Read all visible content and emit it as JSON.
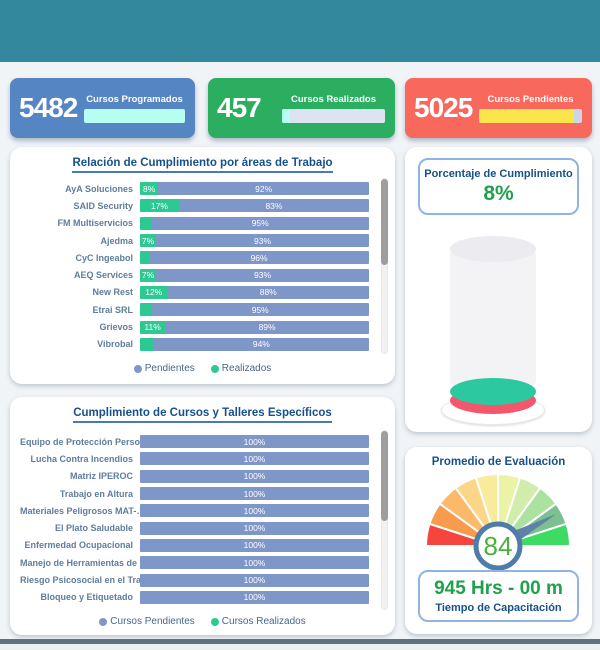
{
  "theme": {
    "header_teal": "#33889E",
    "bar_blue": "#7E96C8",
    "bar_green": "#2DC993",
    "title_blue": "#17508A",
    "value_green": "#1FA24C"
  },
  "kpis": [
    {
      "value": "5482",
      "label": "Cursos Programados",
      "fill_pct": 100,
      "bar_fill": "#B7FEF2",
      "bar_rest": "#B7FEF2"
    },
    {
      "value": "457",
      "label": "Cursos Realizados",
      "fill_pct": 8,
      "bar_fill": "#B7FEF2",
      "bar_rest": "#DCE4F2"
    },
    {
      "value": "5025",
      "label": "Cursos Pendientes",
      "fill_pct": 92,
      "bar_fill": "#FBE44C",
      "bar_rest": "#CBD5E3"
    }
  ],
  "chart_data": [
    {
      "type": "bar",
      "orientation": "horizontal",
      "stacked": true,
      "title": "Relación de Cumplimiento por áreas de Trabajo",
      "categories": [
        "AyA Soluciones",
        "SAID Security",
        "FM Multiservicios",
        "Ajedma",
        "CyC Ingeabol",
        "AEQ Services",
        "New Rest",
        "Etrai SRL",
        "Grievos",
        "Vibrobal"
      ],
      "series": [
        {
          "name": "Realizados",
          "color": "#2DC993",
          "values": [
            8,
            17,
            5,
            7,
            4,
            7,
            12,
            5,
            11,
            6
          ],
          "labels": [
            "8%",
            "17%",
            "",
            "7%",
            "",
            "7%",
            "12%",
            "",
            "11%",
            ""
          ]
        },
        {
          "name": "Pendientes",
          "color": "#7E96C8",
          "values": [
            92,
            83,
            95,
            93,
            96,
            93,
            88,
            95,
            89,
            94
          ],
          "labels": [
            "92%",
            "83%",
            "95%",
            "93%",
            "96%",
            "93%",
            "88%",
            "95%",
            "89%",
            "94%"
          ]
        }
      ],
      "legend": [
        {
          "label": "Pendientes",
          "color": "#7E96C8"
        },
        {
          "label": "Realizados",
          "color": "#2DC993"
        }
      ],
      "xlim": [
        0,
        100
      ]
    },
    {
      "type": "bar",
      "orientation": "horizontal",
      "stacked": true,
      "title": "Cumplimiento de Cursos y Talleres Específicos",
      "categories": [
        "Equipo de Protección Perso…",
        "Lucha Contra Incendios",
        "Matriz IPEROC",
        "Trabajo en Altura",
        "Materiales Peligrosos MAT-…",
        "El Plato Saludable",
        "Enfermedad Ocupacional",
        "Manejo de Herramientas de …",
        "Riesgo Psicosocial en el Tra…",
        "Bloqueo y Etiquetado"
      ],
      "series": [
        {
          "name": "Cursos Pendientes",
          "color": "#7E96C8",
          "values": [
            100,
            100,
            100,
            100,
            100,
            100,
            100,
            100,
            100,
            100
          ],
          "labels": [
            "100%",
            "100%",
            "100%",
            "100%",
            "100%",
            "100%",
            "100%",
            "100%",
            "100%",
            "100%"
          ]
        }
      ],
      "legend": [
        {
          "label": "Cursos Pendientes",
          "color": "#7E96C8"
        },
        {
          "label": "Cursos Realizados",
          "color": "#2DC993"
        }
      ],
      "xlim": [
        0,
        100
      ]
    },
    {
      "type": "gauge",
      "variant": "cylinder",
      "title": "Porcentaje de Cumplimiento",
      "value": 8,
      "value_label": "8%",
      "min": 0,
      "max": 100,
      "fill_top_color": "#2CC9A1",
      "fill_side_color": "#F4566B"
    },
    {
      "type": "gauge",
      "variant": "dial",
      "title": "Promedio de Evaluación",
      "value": 84,
      "min": 0,
      "max": 100,
      "segment_colors": [
        "#F4453F",
        "#F89B4C",
        "#FBB969",
        "#FCD687",
        "#F8EC9C",
        "#EBF3A6",
        "#D2ECAC",
        "#ACE2A0",
        "#7AC091",
        "#3EDB63"
      ],
      "needle_color": "#5E82AA",
      "ring_color": "#4F7CA8",
      "value_color": "#4DAF3E"
    }
  ],
  "time_box": {
    "value": "945 Hrs - 00 m",
    "label": "Tiempo de Capacitación"
  }
}
